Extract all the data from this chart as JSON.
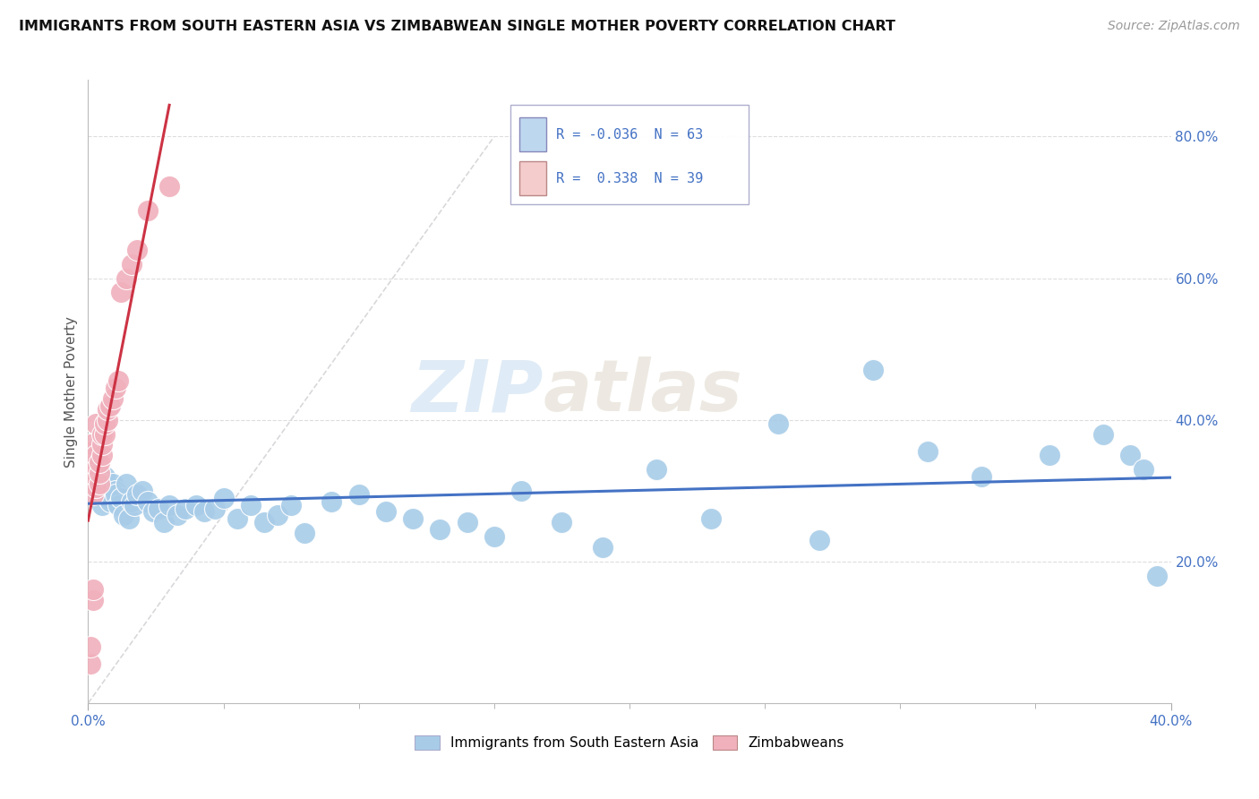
{
  "title": "IMMIGRANTS FROM SOUTH EASTERN ASIA VS ZIMBABWEAN SINGLE MOTHER POVERTY CORRELATION CHART",
  "source": "Source: ZipAtlas.com",
  "ylabel": "Single Mother Poverty",
  "xlim": [
    0.0,
    0.4
  ],
  "ylim": [
    0.0,
    0.88
  ],
  "watermark_zip": "ZIP",
  "watermark_atlas": "atlas",
  "legend_r1": "R = -0.036",
  "legend_n1": "N = 63",
  "legend_r2": "R =  0.338",
  "legend_n2": "N = 39",
  "color_blue": "#A8CCE8",
  "color_pink": "#F0B0BC",
  "line_blue": "#4472C4",
  "line_pink": "#CC3344",
  "color_blue_legend": "#BDD7EE",
  "color_pink_legend": "#F4CCCC",
  "blue_x": [
    0.001,
    0.002,
    0.002,
    0.003,
    0.003,
    0.004,
    0.005,
    0.005,
    0.006,
    0.007,
    0.007,
    0.008,
    0.009,
    0.01,
    0.01,
    0.011,
    0.012,
    0.013,
    0.014,
    0.015,
    0.016,
    0.017,
    0.018,
    0.02,
    0.022,
    0.024,
    0.026,
    0.028,
    0.03,
    0.033,
    0.036,
    0.04,
    0.043,
    0.047,
    0.05,
    0.055,
    0.06,
    0.065,
    0.07,
    0.075,
    0.08,
    0.09,
    0.1,
    0.11,
    0.12,
    0.13,
    0.14,
    0.15,
    0.16,
    0.175,
    0.19,
    0.21,
    0.23,
    0.255,
    0.27,
    0.29,
    0.31,
    0.33,
    0.355,
    0.375,
    0.385,
    0.39,
    0.395
  ],
  "blue_y": [
    0.305,
    0.315,
    0.33,
    0.295,
    0.35,
    0.295,
    0.31,
    0.28,
    0.32,
    0.3,
    0.29,
    0.285,
    0.31,
    0.3,
    0.295,
    0.28,
    0.29,
    0.265,
    0.31,
    0.26,
    0.285,
    0.28,
    0.295,
    0.3,
    0.285,
    0.27,
    0.275,
    0.255,
    0.28,
    0.265,
    0.275,
    0.28,
    0.27,
    0.275,
    0.29,
    0.26,
    0.28,
    0.255,
    0.265,
    0.28,
    0.24,
    0.285,
    0.295,
    0.27,
    0.26,
    0.245,
    0.255,
    0.235,
    0.3,
    0.255,
    0.22,
    0.33,
    0.26,
    0.395,
    0.23,
    0.47,
    0.355,
    0.32,
    0.35,
    0.38,
    0.35,
    0.33,
    0.18
  ],
  "pink_x": [
    0.001,
    0.001,
    0.001,
    0.001,
    0.001,
    0.001,
    0.001,
    0.001,
    0.002,
    0.002,
    0.002,
    0.002,
    0.002,
    0.002,
    0.003,
    0.003,
    0.003,
    0.003,
    0.003,
    0.004,
    0.004,
    0.004,
    0.005,
    0.005,
    0.005,
    0.006,
    0.006,
    0.007,
    0.007,
    0.008,
    0.009,
    0.01,
    0.011,
    0.012,
    0.014,
    0.016,
    0.018,
    0.022,
    0.03
  ],
  "pink_y": [
    0.31,
    0.325,
    0.335,
    0.345,
    0.355,
    0.365,
    0.055,
    0.08,
    0.295,
    0.31,
    0.32,
    0.33,
    0.145,
    0.16,
    0.305,
    0.32,
    0.335,
    0.35,
    0.395,
    0.31,
    0.325,
    0.34,
    0.35,
    0.365,
    0.38,
    0.38,
    0.395,
    0.4,
    0.415,
    0.42,
    0.43,
    0.445,
    0.455,
    0.58,
    0.6,
    0.62,
    0.64,
    0.695,
    0.73
  ],
  "diag_line_color": "#C8C8CC",
  "grid_color": "#DDDDDD"
}
